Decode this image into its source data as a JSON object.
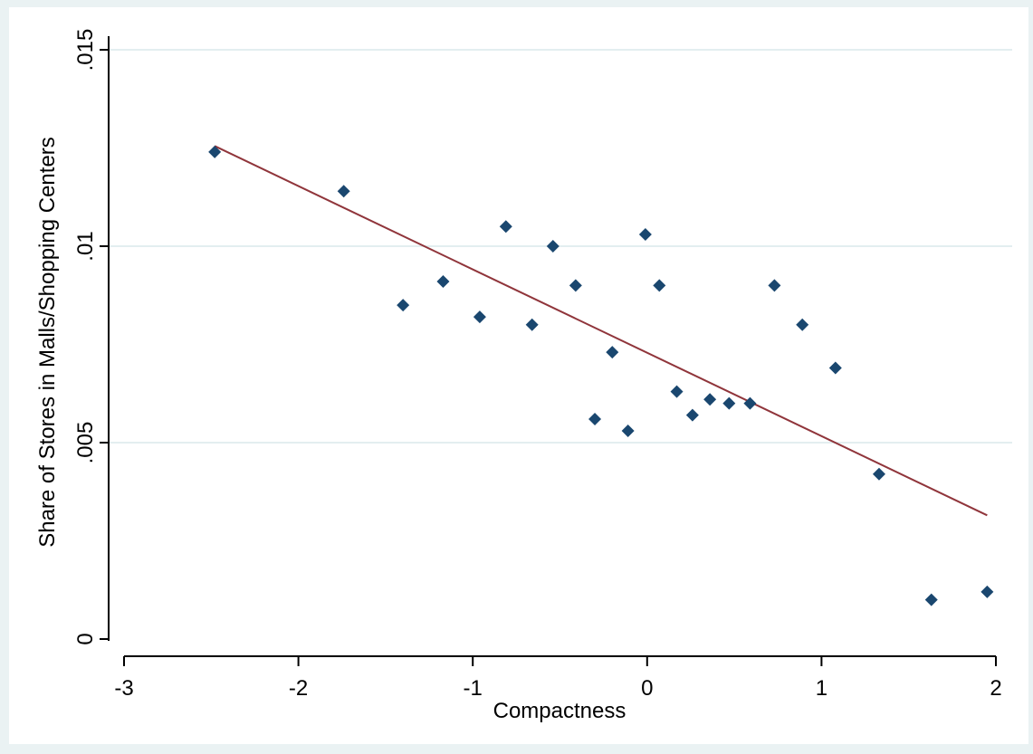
{
  "chart_data": {
    "type": "scatter",
    "title": "",
    "xlabel": "Compactness",
    "ylabel": "Share of Stores in Malls/Shopping Centers",
    "xlim": [
      -3,
      2
    ],
    "ylim": [
      0,
      0.015
    ],
    "x_ticks": [
      {
        "value": -3,
        "label": "-3"
      },
      {
        "value": -2,
        "label": "-2"
      },
      {
        "value": -1,
        "label": "-1"
      },
      {
        "value": 0,
        "label": "0"
      },
      {
        "value": 1,
        "label": "1"
      },
      {
        "value": 2,
        "label": "2"
      }
    ],
    "y_ticks": [
      {
        "value": 0,
        "label": "0"
      },
      {
        "value": 0.005,
        "label": ".005"
      },
      {
        "value": 0.01,
        "label": ".01"
      },
      {
        "value": 0.015,
        "label": ".015"
      }
    ],
    "grid": "horizontal",
    "legend": "none",
    "colors": {
      "background": "#eaf2f3",
      "plot_area": "#ffffff",
      "gridline": "#e3eef0",
      "marker": "#1a476f",
      "fit_line": "#90353b"
    },
    "series": [
      {
        "type": "scatter",
        "points": [
          {
            "x": -2.48,
            "y": 0.0124
          },
          {
            "x": -1.74,
            "y": 0.0114
          },
          {
            "x": -1.4,
            "y": 0.0085
          },
          {
            "x": -1.17,
            "y": 0.0091
          },
          {
            "x": -0.96,
            "y": 0.0082
          },
          {
            "x": -0.81,
            "y": 0.0105
          },
          {
            "x": -0.66,
            "y": 0.008
          },
          {
            "x": -0.54,
            "y": 0.01
          },
          {
            "x": -0.41,
            "y": 0.009
          },
          {
            "x": -0.3,
            "y": 0.0056
          },
          {
            "x": -0.2,
            "y": 0.0073
          },
          {
            "x": -0.11,
            "y": 0.0053
          },
          {
            "x": -0.01,
            "y": 0.0103
          },
          {
            "x": 0.07,
            "y": 0.009
          },
          {
            "x": 0.17,
            "y": 0.0063
          },
          {
            "x": 0.26,
            "y": 0.0057
          },
          {
            "x": 0.36,
            "y": 0.0061
          },
          {
            "x": 0.47,
            "y": 0.006
          },
          {
            "x": 0.59,
            "y": 0.006
          },
          {
            "x": 0.73,
            "y": 0.009
          },
          {
            "x": 0.89,
            "y": 0.008
          },
          {
            "x": 1.08,
            "y": 0.0069
          },
          {
            "x": 1.33,
            "y": 0.0042
          },
          {
            "x": 1.63,
            "y": 0.001
          },
          {
            "x": 1.95,
            "y": 0.0012
          }
        ]
      },
      {
        "type": "line",
        "points": [
          {
            "x": -2.48,
            "y": 0.01255
          },
          {
            "x": 1.95,
            "y": 0.00315
          }
        ]
      }
    ]
  }
}
